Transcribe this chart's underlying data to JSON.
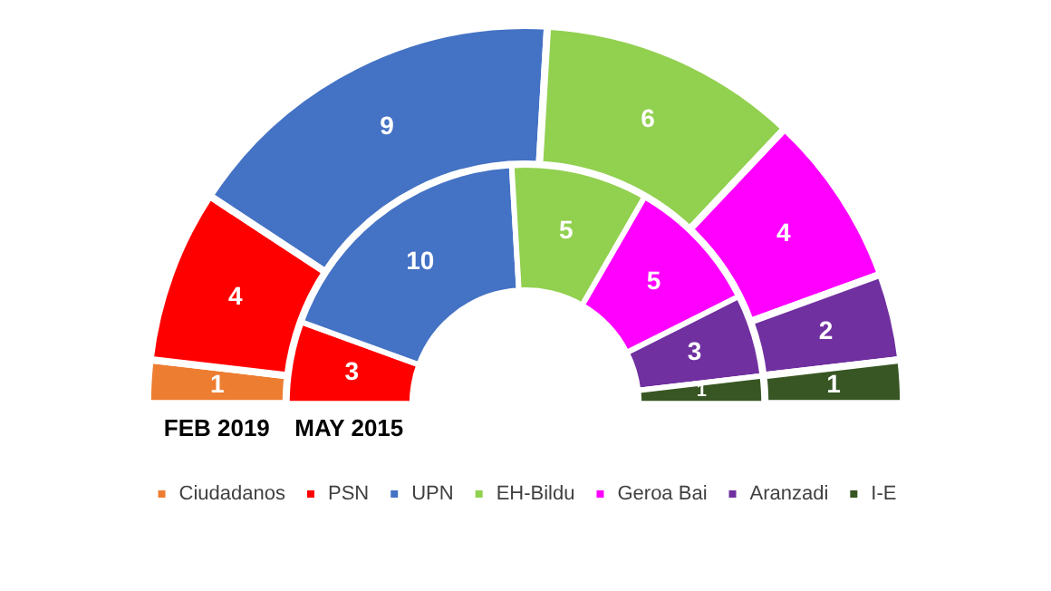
{
  "chart_data": {
    "type": "donut",
    "categories": [
      "Ciudadanos",
      "PSN",
      "UPN",
      "EH-Bildu",
      "Geroa Bai",
      "Aranzadi",
      "I-E"
    ],
    "colors": [
      "#ed7d31",
      "#ff0000",
      "#4472c4",
      "#92d050",
      "#ff00ff",
      "#7030a0",
      "#375623"
    ],
    "series": [
      {
        "name": "FEB 2019",
        "values": [
          1,
          4,
          9,
          6,
          4,
          2,
          1
        ]
      },
      {
        "name": "MAY 2015",
        "values": [
          0,
          3,
          10,
          5,
          5,
          3,
          1
        ]
      }
    ],
    "data_labels": true,
    "legend": "bottom"
  }
}
